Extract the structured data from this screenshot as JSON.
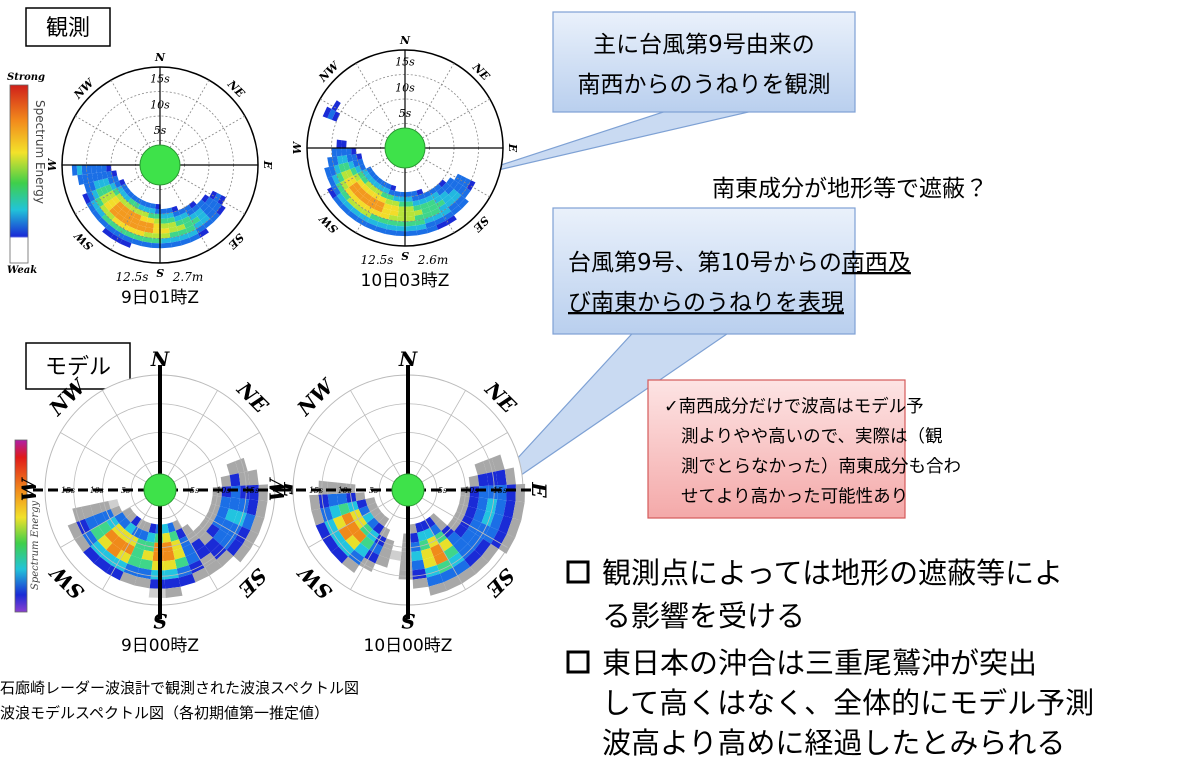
{
  "observed_label": "観測",
  "model_label": "モデル",
  "directions": [
    "N",
    "NE",
    "E",
    "SE",
    "S",
    "SW",
    "W",
    "NW"
  ],
  "periods": [
    "5s",
    "10s",
    "15s"
  ],
  "colorbar": {
    "strong": "Strong",
    "energy": "Spectrum Energy",
    "weak": "Weak"
  },
  "model_colorbar_label": "Spectrum Energy",
  "observed_plots": [
    {
      "caption": "9日01時Z",
      "period": "12.5s",
      "height": "2.7m"
    },
    {
      "caption": "10日03時Z",
      "period": "12.5s",
      "height": "2.6m"
    }
  ],
  "model_plots": [
    {
      "caption": "9日00時Z"
    },
    {
      "caption": "10日00時Z"
    }
  ],
  "figure_caption": [
    "石廊崎レーダー波浪計で観測された波浪スペクトル図",
    "波浪モデルスペクトル図（各初期値第一推定値）"
  ],
  "callout_observed": [
    "主に台風第9号由来の",
    "南西からのうねりを観測"
  ],
  "shading_note": "南東成分が地形等で遮蔽？",
  "callout_model": {
    "lines": [
      {
        "plain": "台風第9号、第10号からの",
        "underlined": "南西及"
      },
      {
        "underlined": "び南東からのうねりを表現"
      }
    ]
  },
  "note": [
    "✓南西成分だけで波高はモデル予",
    "測よりやや高いので、実際は（観",
    "測でとらなかった）南東成分も合わ",
    "せてより高かった可能性あり"
  ],
  "bullets": [
    [
      "観測点によっては地形の遮蔽等によ",
      "る影響を受ける"
    ],
    [
      "東日本の沖合は三重尾鷲沖が突出",
      "して高くはなく、全体的にモデル予測",
      "波高より高めに経過したとみられる"
    ]
  ]
}
